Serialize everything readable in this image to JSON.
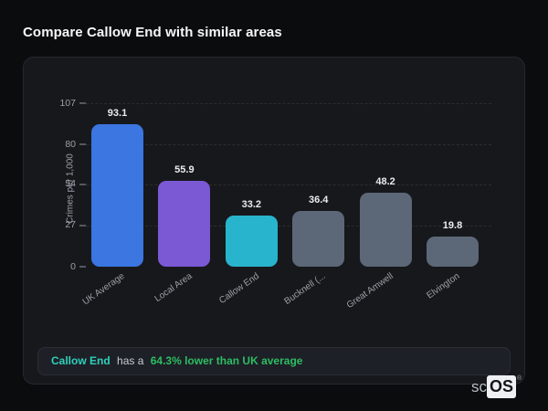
{
  "page_title": "Compare Callow End with similar areas",
  "chart_data": {
    "type": "bar",
    "categories": [
      "UK Average",
      "Local Area",
      "Callow End",
      "Bucknell (...",
      "Great Amwell",
      "Elvington"
    ],
    "values": [
      93.1,
      55.9,
      33.2,
      36.4,
      48.2,
      19.8
    ],
    "bar_colors": [
      "#3b76e1",
      "#7b59d4",
      "#29b4cd",
      "#5c6878",
      "#5c6878",
      "#5c6878"
    ],
    "title": "",
    "xlabel": "",
    "ylabel": "Crimes per 1,000",
    "yticks": [
      0,
      27,
      54,
      80,
      107
    ],
    "ylim": [
      0,
      107
    ],
    "grid": "dashed horizontal gridlines at yticks above 0",
    "legend": "none",
    "value_label_decimals": 1
  },
  "note": {
    "area": "Callow End",
    "middle": "has a",
    "stat": "64.3% lower than UK average"
  },
  "logo": {
    "prefix": "sc",
    "suffix": "OS",
    "registered": "®"
  },
  "colors": {
    "page_background": "#0b0c0e",
    "card_background": "#17181c",
    "note_background": "#1d2026",
    "note_area_text": "#2fd0bd",
    "note_stat_text": "#2dbd63",
    "axis_text": "#9aa0a8",
    "value_label_text": "#e9ebee"
  }
}
